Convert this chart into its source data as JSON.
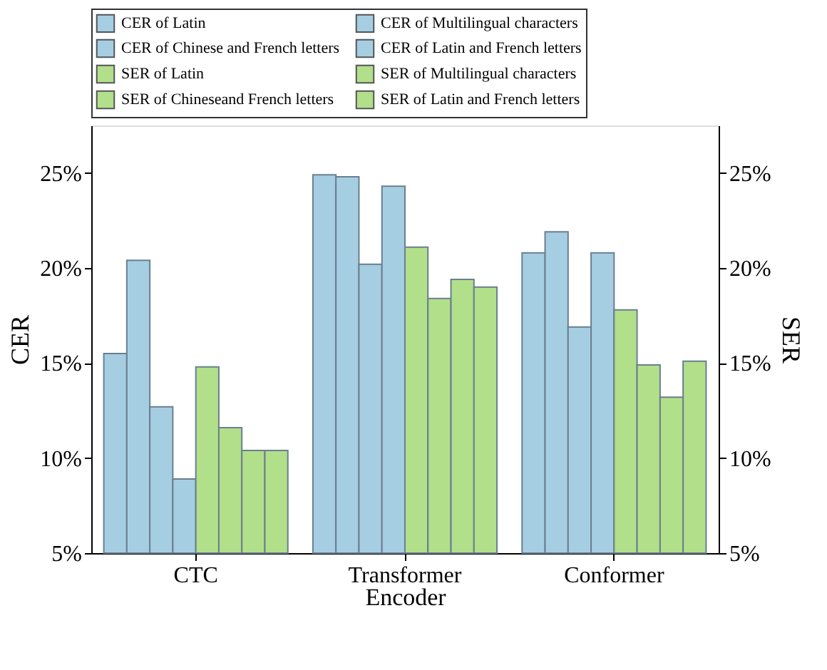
{
  "chart_data": {
    "type": "bar",
    "categories": [
      "CTC",
      "Transformer",
      "Conformer"
    ],
    "xlabel": "Encoder",
    "ylabel": "CER",
    "y2label": "SER",
    "series": [
      {
        "name": "CER of Latin",
        "color": "#a6cee3",
        "values": [
          15.5,
          24.9,
          20.8
        ]
      },
      {
        "name": "CER of Multilingual characters",
        "color": "#a6cee3",
        "values": [
          20.4,
          24.8,
          21.9
        ]
      },
      {
        "name": "CER of Chinese and French letters",
        "color": "#a6cee3",
        "values": [
          12.7,
          20.2,
          16.9
        ]
      },
      {
        "name": "CER of Latin and French letters",
        "color": "#a6cee3",
        "values": [
          8.9,
          24.3,
          20.8
        ]
      },
      {
        "name": "SER of Latin",
        "color": "#b2df8a",
        "values": [
          14.8,
          21.1,
          17.8
        ],
        "axis": "y2"
      },
      {
        "name": "SER of Multilingual characters",
        "color": "#b2df8a",
        "values": [
          11.6,
          18.4,
          14.9
        ],
        "axis": "y2"
      },
      {
        "name": "SER of Chineseand French letters",
        "color": "#b2df8a",
        "values": [
          10.4,
          19.4,
          13.2
        ],
        "axis": "y2"
      },
      {
        "name": "SER of Latin and French letters",
        "color": "#b2df8a",
        "values": [
          10.4,
          19.0,
          15.1
        ],
        "axis": "y2"
      }
    ],
    "ylim": [
      5,
      27.5
    ],
    "yticks": [
      {
        "value": 5,
        "label": "5%"
      },
      {
        "value": 10,
        "label": "10%"
      },
      {
        "value": 15,
        "label": "15%"
      },
      {
        "value": 20,
        "label": "20%"
      },
      {
        "value": 25,
        "label": "25%"
      }
    ],
    "y2lim": [
      5,
      27.5
    ],
    "y2ticks": [
      {
        "value": 5,
        "label": "5%"
      },
      {
        "value": 10,
        "label": "10%"
      },
      {
        "value": 15,
        "label": "15%"
      },
      {
        "value": 20,
        "label": "20%"
      },
      {
        "value": 25,
        "label": "25%"
      }
    ],
    "legend": "top",
    "grid": false
  }
}
